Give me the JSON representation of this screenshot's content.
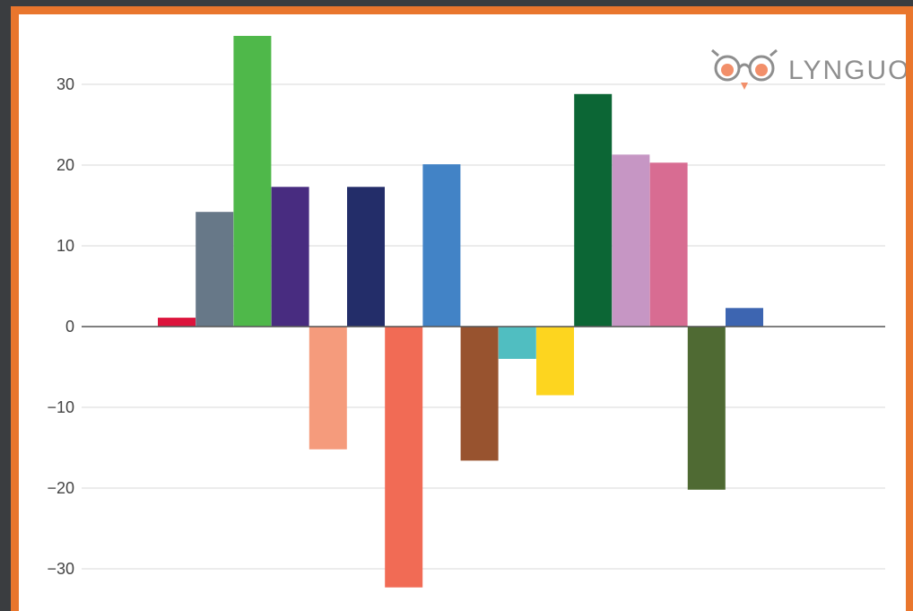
{
  "chart_data": {
    "type": "bar",
    "title": "",
    "xlabel": "",
    "ylabel": "",
    "ylim": [
      -33,
      36
    ],
    "yticks": [
      30,
      20,
      10,
      0,
      -10,
      -20,
      -30
    ],
    "ytick_labels": [
      "30",
      "20",
      "10",
      "0",
      "−10",
      "−20",
      "−30"
    ],
    "grid": true,
    "legend": "none",
    "values": [
      1.1,
      14.2,
      36.0,
      17.3,
      -15.2,
      17.3,
      -32.3,
      20.1,
      -16.6,
      -4.0,
      -8.5,
      28.8,
      21.3,
      20.3,
      -20.2,
      2.3
    ],
    "colors": [
      "#dc143c",
      "#677888",
      "#4fb84a",
      "#482c80",
      "#f59b7c",
      "#232d69",
      "#f16b55",
      "#4283c6",
      "#98532f",
      "#50bec1",
      "#fdd51f",
      "#0c6635",
      "#c696c4",
      "#d86c92",
      "#4f6a33",
      "#3d65b1"
    ]
  },
  "logo": {
    "text": "LYNGUO",
    "icon": "owl-icon"
  },
  "colors": {
    "frame": "#e9762d",
    "background": "#3a3d40"
  }
}
